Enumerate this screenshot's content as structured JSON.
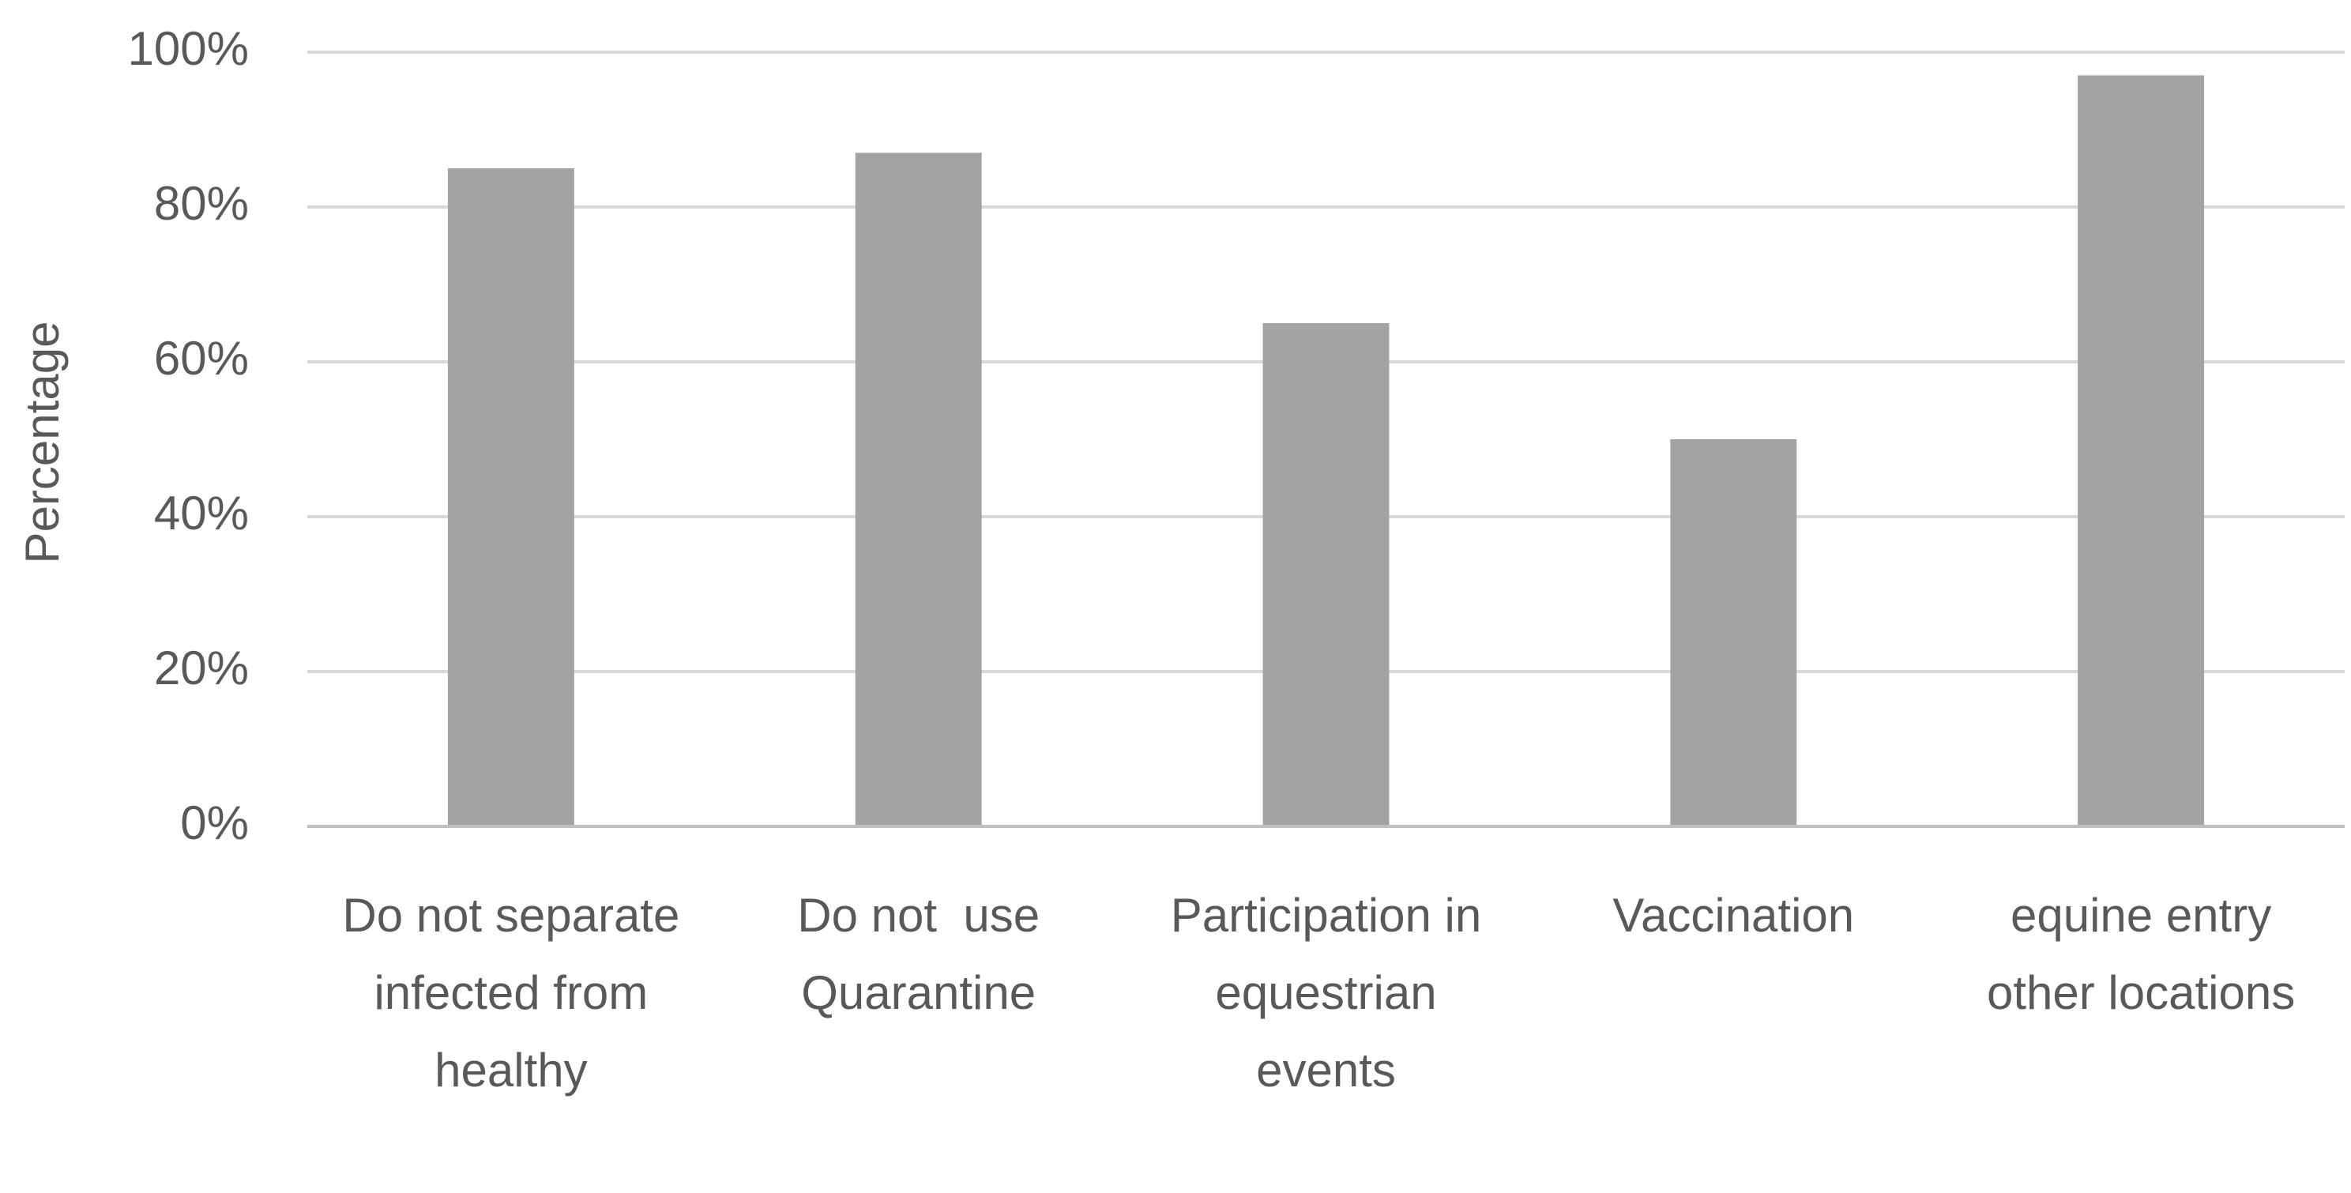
{
  "chart_data": {
    "type": "bar",
    "ylabel": "Percentage",
    "categories": [
      "Do not separate infected from healthy",
      "Do not  use Quarantine",
      "Participation in equestrian events",
      "Vaccination",
      "equine entry other locations"
    ],
    "values": [
      85,
      87,
      65,
      50,
      97
    ],
    "color": "#a3a3a3",
    "ylim": [
      0,
      100
    ],
    "yticks": [
      {
        "value": 0,
        "label": "0%"
      },
      {
        "value": 20,
        "label": "20%"
      },
      {
        "value": 40,
        "label": "40%"
      },
      {
        "value": 60,
        "label": "60%"
      },
      {
        "value": 80,
        "label": "80%"
      },
      {
        "value": 100,
        "label": "100%"
      }
    ],
    "grid": true
  }
}
